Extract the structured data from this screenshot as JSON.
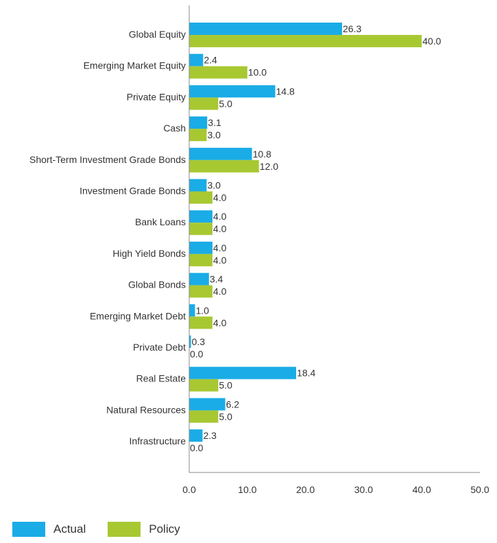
{
  "chart_data": {
    "type": "bar",
    "orientation": "horizontal",
    "categories": [
      "Global Equity",
      "Emerging Market Equity",
      "Private Equity",
      "Cash",
      "Short-Term Investment Grade Bonds",
      "Investment Grade Bonds",
      "Bank Loans",
      "High Yield Bonds",
      "Global Bonds",
      "Emerging Market Debt",
      "Private Debt",
      "Real Estate",
      "Natural Resources",
      "Infrastructure"
    ],
    "series": [
      {
        "name": "Actual",
        "color": "#1aace6",
        "values": [
          26.3,
          2.4,
          14.8,
          3.1,
          10.8,
          3.0,
          4.0,
          4.0,
          3.4,
          1.0,
          0.3,
          18.4,
          6.2,
          2.3
        ],
        "labels": [
          "26.3",
          "2.4",
          "14.8",
          "3.1",
          "10.8",
          "3.0",
          "4.0",
          "4.0",
          "3.4",
          "1.0",
          "0.3",
          "18.4",
          "6.2",
          "2.3"
        ]
      },
      {
        "name": "Policy",
        "color": "#a8c832",
        "values": [
          40.0,
          10.0,
          5.0,
          3.0,
          12.0,
          4.0,
          4.0,
          4.0,
          4.0,
          4.0,
          0.0,
          5.0,
          5.0,
          0.0
        ],
        "labels": [
          "40.0",
          "10.0",
          "5.0",
          "3.0",
          "12.0",
          "4.0",
          "4.0",
          "4.0",
          "4.0",
          "4.0",
          "0.0",
          "5.0",
          "5.0",
          "0.0"
        ]
      }
    ],
    "xlim": [
      0,
      50
    ],
    "xticks": [
      "0.0",
      "10.0",
      "20.0",
      "30.0",
      "40.0",
      "50.0"
    ],
    "title": "",
    "xlabel": "",
    "ylabel": "",
    "grid": false,
    "legend": "bottom-left"
  }
}
